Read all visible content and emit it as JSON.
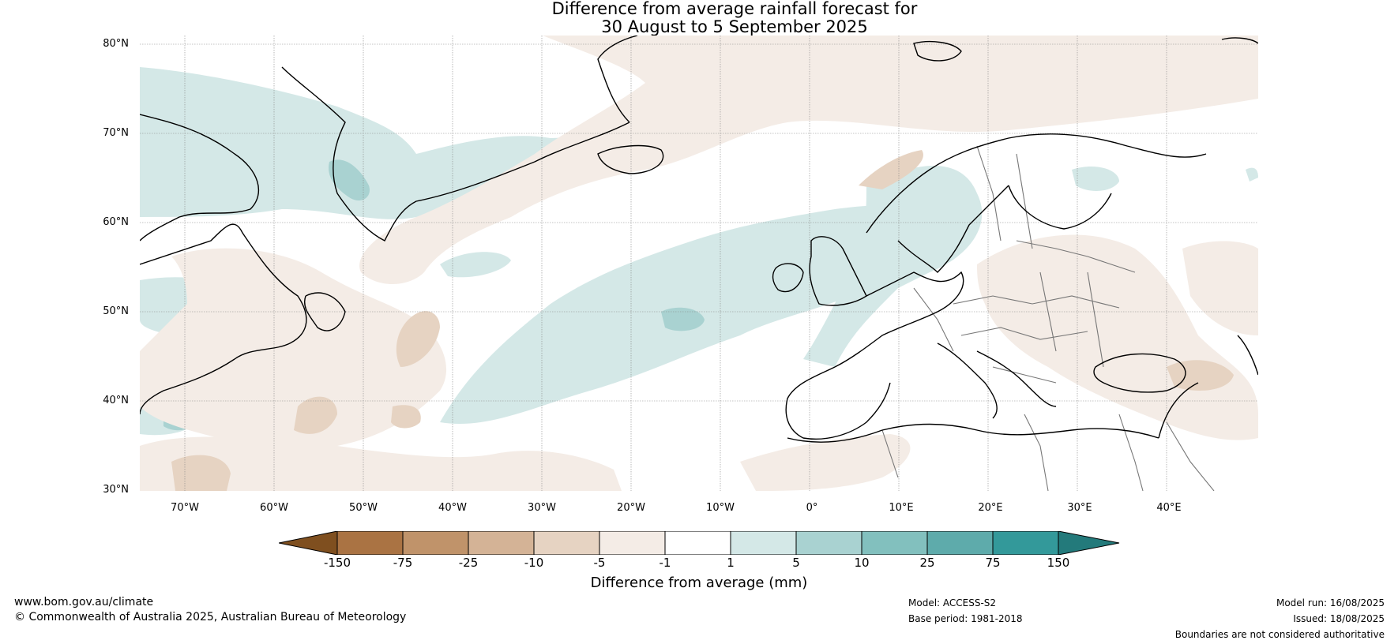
{
  "title": {
    "line1": "Difference from average rainfall forecast for",
    "line2": "30 August to 5 September 2025"
  },
  "map": {
    "lat_labels": [
      "80°N",
      "70°N",
      "60°N",
      "50°N",
      "40°N",
      "30°N"
    ],
    "lon_labels": [
      "70°W",
      "60°W",
      "50°W",
      "40°W",
      "30°W",
      "20°W",
      "10°W",
      "0°",
      "10°E",
      "20°E",
      "30°E",
      "40°E"
    ],
    "colors": {
      "neg150": "#7f4f1f",
      "neg75": "#aa7343",
      "neg25": "#c0936a",
      "neg10": "#d4b396",
      "neg5": "#e6d3c2",
      "neg1": "#f4ece6",
      "zero": "#ffffff",
      "pos1": "#d4e8e7",
      "pos5": "#a9d2d1",
      "pos10": "#82c0be",
      "pos25": "#5eabab",
      "pos75": "#33999a",
      "pos150": "#237a7b",
      "coast": "#000000",
      "border": "#777777",
      "grid": "#888888"
    }
  },
  "colorbar": {
    "ticks": [
      "-150",
      "-75",
      "-25",
      "-10",
      "-5",
      "-1",
      "1",
      "5",
      "10",
      "25",
      "75",
      "150"
    ],
    "label": "Difference from average (mm)"
  },
  "footer": {
    "website": "www.bom.gov.au/climate",
    "copyright": "© Commonwealth of Australia 2025, Australian Bureau of Meteorology",
    "model": "Model: ACCESS-S2",
    "base_period": "Base period: 1981-2018",
    "model_run": "Model run: 16/08/2025",
    "issued": "Issued: 18/08/2025",
    "disclaimer": "Boundaries are not considered authoritative"
  }
}
